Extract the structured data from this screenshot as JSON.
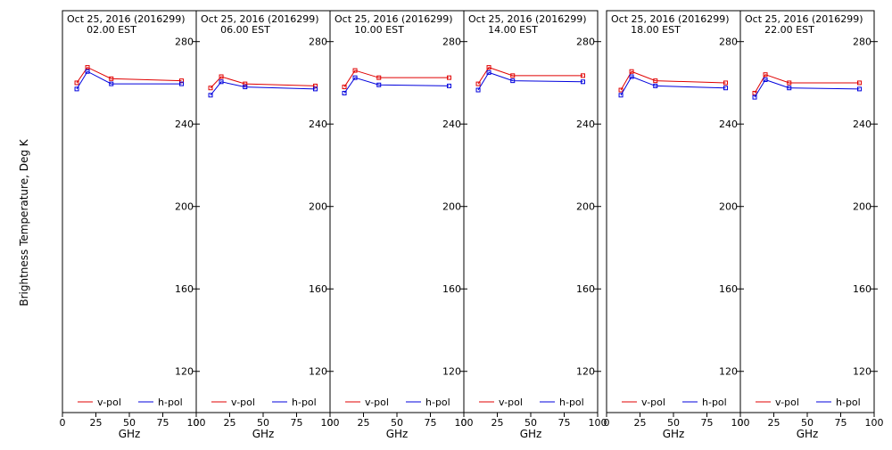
{
  "ylabel": "Brightness Temperature, Deg K",
  "colors": {
    "v_pol": "#e00000",
    "h_pol": "#0000dd",
    "axes": "#000000",
    "background": "#ffffff"
  },
  "chart_data": [
    {
      "type": "line",
      "title_line1": "Oct 25, 2016 (2016299)",
      "title_line2": "02.00 EST",
      "xlabel": "GHz",
      "xlim": [
        0,
        100
      ],
      "ylim": [
        100,
        295
      ],
      "x_ticks": [
        "0",
        "25",
        "50",
        "75",
        "100"
      ],
      "y_ticks": [
        "120",
        "160",
        "200",
        "240",
        "280"
      ],
      "legend_position": "bottom",
      "series": [
        {
          "name": "v-pol",
          "color": "#e00000",
          "x": [
            10.7,
            18.7,
            36.5,
            89
          ],
          "y": [
            260,
            267.5,
            262,
            261
          ]
        },
        {
          "name": "h-pol",
          "color": "#0000dd",
          "x": [
            10.7,
            18.7,
            36.5,
            89
          ],
          "y": [
            257,
            265.5,
            259.5,
            259.5
          ]
        }
      ]
    },
    {
      "type": "line",
      "title_line1": "Oct 25, 2016 (2016299)",
      "title_line2": "06.00 EST",
      "xlabel": "GHz",
      "xlim": [
        0,
        100
      ],
      "ylim": [
        100,
        295
      ],
      "x_ticks": [
        "0",
        "25",
        "50",
        "75",
        "100"
      ],
      "y_ticks": [
        "120",
        "160",
        "200",
        "240",
        "280"
      ],
      "legend_position": "bottom",
      "series": [
        {
          "name": "v-pol",
          "color": "#e00000",
          "x": [
            10.7,
            18.7,
            36.5,
            89
          ],
          "y": [
            257.5,
            263,
            259.5,
            258.5
          ]
        },
        {
          "name": "h-pol",
          "color": "#0000dd",
          "x": [
            10.7,
            18.7,
            36.5,
            89
          ],
          "y": [
            254,
            260.5,
            258,
            257
          ]
        }
      ]
    },
    {
      "type": "line",
      "title_line1": "Oct 25, 2016 (2016299)",
      "title_line2": "10.00 EST",
      "xlabel": "GHz",
      "xlim": [
        0,
        100
      ],
      "ylim": [
        100,
        295
      ],
      "x_ticks": [
        "0",
        "25",
        "50",
        "75",
        "100"
      ],
      "y_ticks": [
        "120",
        "160",
        "200",
        "240",
        "280"
      ],
      "legend_position": "bottom",
      "series": [
        {
          "name": "v-pol",
          "color": "#e00000",
          "x": [
            10.7,
            18.7,
            36.5,
            89
          ],
          "y": [
            258,
            266,
            262.5,
            262.5
          ]
        },
        {
          "name": "h-pol",
          "color": "#0000dd",
          "x": [
            10.7,
            18.7,
            36.5,
            89
          ],
          "y": [
            255,
            262.5,
            259,
            258.5
          ]
        }
      ]
    },
    {
      "type": "line",
      "title_line1": "Oct 25, 2016 (2016299)",
      "title_line2": "14.00 EST",
      "xlabel": "GHz",
      "xlim": [
        0,
        100
      ],
      "ylim": [
        100,
        295
      ],
      "x_ticks": [
        "0",
        "25",
        "50",
        "75",
        "100"
      ],
      "y_ticks": [
        "120",
        "160",
        "200",
        "240",
        "280"
      ],
      "legend_position": "bottom",
      "series": [
        {
          "name": "v-pol",
          "color": "#e00000",
          "x": [
            10.7,
            18.7,
            36.5,
            89
          ],
          "y": [
            259.5,
            267.5,
            263.5,
            263.5
          ]
        },
        {
          "name": "h-pol",
          "color": "#0000dd",
          "x": [
            10.7,
            18.7,
            36.5,
            89
          ],
          "y": [
            256.5,
            265,
            261,
            260.5
          ]
        }
      ]
    },
    {
      "type": "line",
      "title_line1": "Oct 25, 2016 (2016299)",
      "title_line2": "18.00 EST",
      "xlabel": "GHz",
      "xlim": [
        0,
        100
      ],
      "ylim": [
        100,
        295
      ],
      "x_ticks": [
        "0",
        "25",
        "50",
        "75",
        "100"
      ],
      "y_ticks": [
        "120",
        "160",
        "200",
        "240",
        "280"
      ],
      "legend_position": "bottom",
      "series": [
        {
          "name": "v-pol",
          "color": "#e00000",
          "x": [
            10.7,
            18.7,
            36.5,
            89
          ],
          "y": [
            256.5,
            265.5,
            261,
            260
          ]
        },
        {
          "name": "h-pol",
          "color": "#0000dd",
          "x": [
            10.7,
            18.7,
            36.5,
            89
          ],
          "y": [
            254,
            263,
            258.5,
            257.5
          ]
        }
      ]
    },
    {
      "type": "line",
      "title_line1": "Oct 25, 2016 (2016299)",
      "title_line2": "22.00 EST",
      "xlabel": "GHz",
      "xlim": [
        0,
        100
      ],
      "ylim": [
        100,
        295
      ],
      "x_ticks": [
        "0",
        "25",
        "50",
        "75",
        "100"
      ],
      "y_ticks": [
        "120",
        "160",
        "200",
        "240",
        "280"
      ],
      "legend_position": "bottom",
      "series": [
        {
          "name": "v-pol",
          "color": "#e00000",
          "x": [
            10.7,
            18.7,
            36.5,
            89
          ],
          "y": [
            255,
            264,
            260,
            260
          ]
        },
        {
          "name": "h-pol",
          "color": "#0000dd",
          "x": [
            10.7,
            18.7,
            36.5,
            89
          ],
          "y": [
            253,
            261.5,
            257.5,
            257
          ]
        }
      ]
    }
  ]
}
